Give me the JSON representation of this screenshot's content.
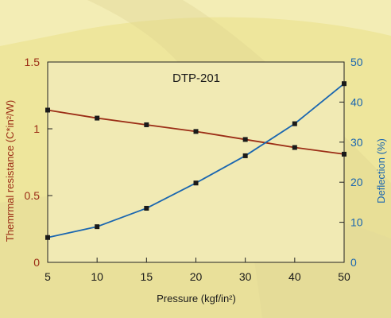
{
  "chart_data": {
    "type": "line",
    "title": "DTP-201",
    "xlabel": "Pressure (kgf/in²)",
    "ylabel_left": "Themrmal resistance (C*in²/W)",
    "ylabel_right": "Deflection (%)",
    "categories": [
      "5",
      "10",
      "15",
      "20",
      "30",
      "40",
      "50"
    ],
    "yleft_ticks": [
      "0",
      "0.5",
      "1",
      "1.5"
    ],
    "yright_ticks": [
      "0",
      "10",
      "20",
      "30",
      "40",
      "50"
    ],
    "yleft_lim": [
      0,
      1.5
    ],
    "yright_lim": [
      0,
      50
    ],
    "grid": false,
    "series": [
      {
        "axis": "left",
        "color": "#9b2d16",
        "values": [
          1.14,
          1.08,
          1.03,
          0.98,
          0.92,
          0.86,
          0.81
        ]
      },
      {
        "axis": "right",
        "color": "#1a66b0",
        "values": [
          6.2,
          8.9,
          13.5,
          19.8,
          26.6,
          34.6,
          44.6
        ]
      }
    ],
    "colors": {
      "background": "#eee69c",
      "plot_background": "#f1eab4",
      "left_axis_text": "#9b2d16",
      "right_axis_text": "#1a66b0",
      "marker": "#1a1a1a"
    }
  }
}
